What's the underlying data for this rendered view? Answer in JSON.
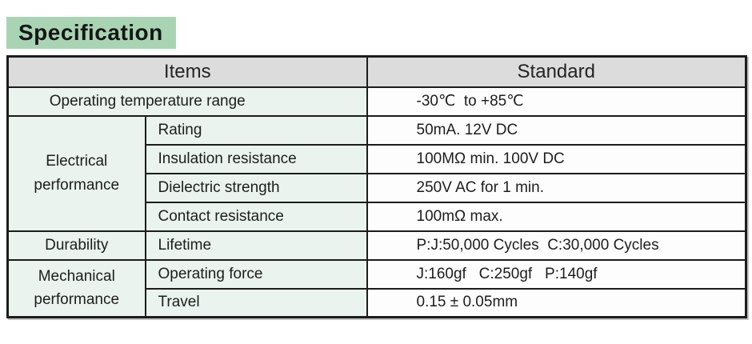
{
  "title": "Specification",
  "colors": {
    "title_bg": "#a9d4b4",
    "header_bg": "#dcdcdc",
    "items_bg": "#eaf3ed",
    "standard_bg": "#fdfdfd",
    "border": "#1c1c1c",
    "text": "#1d1d1d"
  },
  "table": {
    "header": {
      "items": "Items",
      "standard": "Standard"
    },
    "rows": [
      {
        "item": "Operating temperature range",
        "standard": "-30℃  to +85℃"
      },
      {
        "group": "Electrical performance",
        "item": "Rating",
        "standard": "50mA. 12V DC"
      },
      {
        "item": "Insulation resistance",
        "standard": "100MΩ min. 100V DC"
      },
      {
        "item": "Dielectric strength",
        "standard": "250V AC for 1 min."
      },
      {
        "item": "Contact resistance",
        "standard": "100mΩ max."
      },
      {
        "group": "Durability",
        "item": "Lifetime",
        "standard": "P:J:50,000 Cycles  C:30,000 Cycles"
      },
      {
        "group": "Mechanical performance",
        "item": "Operating force",
        "standard": "J:160gf   C:250gf   P:140gf"
      },
      {
        "item": "Travel",
        "standard": "0.15 ± 0.05mm"
      }
    ]
  }
}
